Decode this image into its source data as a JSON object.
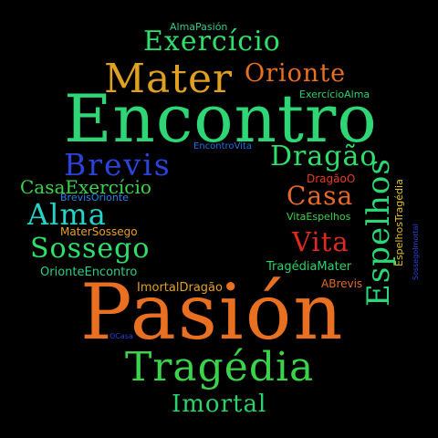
{
  "words": [
    {
      "text": "AlmaPasión",
      "color": "#2ecc8a"
    },
    {
      "text": "Exercício",
      "color": "#2ee06a"
    },
    {
      "text": "Mater",
      "color": "#e0a020"
    },
    {
      "text": "Orionte",
      "color": "#e87020"
    },
    {
      "text": "ExercícioAlma",
      "color": "#27d36a"
    },
    {
      "text": "Encontro",
      "color": "#2ed675"
    },
    {
      "text": "EncontroVita",
      "color": "#1f6fe0"
    },
    {
      "text": "Brevis",
      "color": "#2a43d8"
    },
    {
      "text": "Dragão",
      "color": "#2ee06a"
    },
    {
      "text": "DragãoO",
      "color": "#e83a20"
    },
    {
      "text": "CasaExercício",
      "color": "#3ad34a"
    },
    {
      "text": "BrevisOrionte",
      "color": "#2a80e0"
    },
    {
      "text": "Casa",
      "color": "#e86a2a"
    },
    {
      "text": "Alma",
      "color": "#27d3c8"
    },
    {
      "text": "MaterSossego",
      "color": "#e8a020"
    },
    {
      "text": "VitaEspelhos",
      "color": "#3ad34a"
    },
    {
      "text": "Sossego",
      "color": "#2ee06a"
    },
    {
      "text": "Vita",
      "color": "#e02a20"
    },
    {
      "text": "TragédiaMater",
      "color": "#27d36a"
    },
    {
      "text": "OrionteEncontro",
      "color": "#2ecc8a"
    },
    {
      "text": "ImortalDragão",
      "color": "#e0a020"
    },
    {
      "text": "ABrevis",
      "color": "#e06a20"
    },
    {
      "text": "Pasión",
      "color": "#e87020"
    },
    {
      "text": "OCasa",
      "color": "#2a43d8"
    },
    {
      "text": "Tragédia",
      "color": "#3ad34a"
    },
    {
      "text": "Imortal",
      "color": "#27d36a"
    },
    {
      "text": "Espelhos",
      "color": "#2ed675"
    },
    {
      "text": "EspelhosTragédia",
      "color": "#e0c020"
    },
    {
      "text": "SossegoImortal",
      "color": "#2a43d8"
    }
  ]
}
